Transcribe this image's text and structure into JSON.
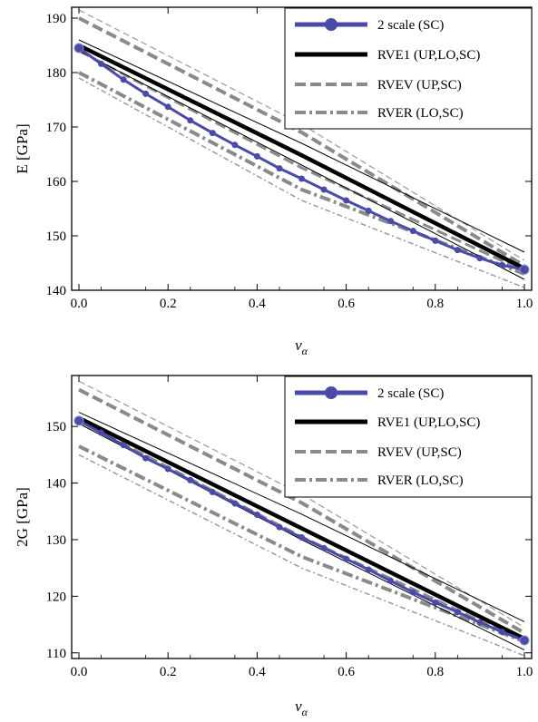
{
  "chart_data": [
    {
      "type": "line",
      "ylabel": "E [GPa]",
      "xlabel": "ν_α",
      "xlabel_main": "ν",
      "xlabel_sub": "α",
      "xlim": [
        0,
        1
      ],
      "ylim": [
        140,
        192
      ],
      "xticks": [
        0.0,
        0.2,
        0.4,
        0.6,
        0.8,
        1.0
      ],
      "xtick_labels": [
        "0.0",
        "0.2",
        "0.4",
        "0.6",
        "0.8",
        "1.0"
      ],
      "yticks": [
        140,
        150,
        160,
        170,
        180,
        190
      ],
      "ytick_labels": [
        "140",
        "150",
        "160",
        "170",
        "180",
        "190"
      ],
      "legend_position": "top-right",
      "legend": [
        "2 scale (SC)",
        "RVE1 (UP,LO,SC)",
        "RVEV (UP,SC)",
        "RVER (LO,SC)"
      ],
      "series": [
        {
          "name": "2 scale (SC)",
          "style": "markers",
          "color": "#4a4aa8",
          "x": [
            0,
            0.05,
            0.1,
            0.15,
            0.2,
            0.25,
            0.3,
            0.35,
            0.4,
            0.45,
            0.5,
            0.55,
            0.6,
            0.65,
            0.7,
            0.75,
            0.8,
            0.85,
            0.9,
            0.95,
            1.0
          ],
          "y": [
            184.5,
            181.6,
            178.7,
            176.1,
            173.7,
            171.2,
            168.9,
            166.7,
            164.6,
            162.4,
            160.5,
            158.5,
            156.5,
            154.6,
            152.7,
            150.9,
            149.1,
            147.4,
            145.9,
            144.6,
            143.8
          ]
        },
        {
          "name": "RVE1 (UP,LO,SC)",
          "style": "band",
          "color": "#000000",
          "x": [
            0,
            0.5,
            1.0
          ],
          "y": [
            185.0,
            164.8,
            144.0
          ],
          "upper": {
            "x": [
              0,
              0.5,
              1.0
            ],
            "y": [
              186.0,
              167.0,
              147.0
            ]
          },
          "lower": {
            "x": [
              0,
              0.5,
              1.0
            ],
            "y": [
              184.0,
              163.0,
              142.0
            ]
          }
        },
        {
          "name": "RVEV (UP,SC)",
          "style": "dashed-band",
          "color": "#8a8a8a",
          "upper": {
            "x": [
              0,
              0.5,
              1.0
            ],
            "y": [
              190.0,
              169.0,
              144.5
            ]
          },
          "upper_outer": {
            "x": [
              0,
              0.5,
              1.0
            ],
            "y": [
              191.5,
              170.5,
              145.5
            ]
          },
          "lower": {
            "x": [
              0,
              0.5,
              1.0
            ],
            "y": [
              184.0,
              162.5,
              143.5
            ]
          }
        },
        {
          "name": "RVER (LO,SC)",
          "style": "dashdot-band",
          "color": "#8a8a8a",
          "upper": {
            "x": [
              0,
              0.5,
              1.0
            ],
            "y": [
              180.0,
              158.5,
              143.0
            ]
          },
          "lower": {
            "x": [
              0,
              0.5,
              1.0
            ],
            "y": [
              179.0,
              156.5,
              140.5
            ]
          }
        }
      ]
    },
    {
      "type": "line",
      "ylabel": "2G [GPa]",
      "xlabel": "ν_α",
      "xlabel_main": "ν",
      "xlabel_sub": "α",
      "xlim": [
        0,
        1
      ],
      "ylim": [
        109,
        159
      ],
      "xticks": [
        0.0,
        0.2,
        0.4,
        0.6,
        0.8,
        1.0
      ],
      "xtick_labels": [
        "0.0",
        "0.2",
        "0.4",
        "0.6",
        "0.8",
        "1.0"
      ],
      "yticks": [
        110,
        120,
        130,
        140,
        150
      ],
      "ytick_labels": [
        "110",
        "120",
        "130",
        "140",
        "150"
      ],
      "legend_position": "top-right",
      "legend": [
        "2 scale (SC)",
        "RVE1 (UP,LO,SC)",
        "RVEV (UP,SC)",
        "RVER (LO,SC)"
      ],
      "series": [
        {
          "name": "2 scale (SC)",
          "style": "markers",
          "color": "#4a4aa8",
          "x": [
            0,
            0.05,
            0.1,
            0.15,
            0.2,
            0.25,
            0.3,
            0.35,
            0.4,
            0.45,
            0.5,
            0.55,
            0.6,
            0.65,
            0.7,
            0.75,
            0.8,
            0.85,
            0.9,
            0.95,
            1.0
          ],
          "y": [
            151.0,
            148.9,
            146.7,
            144.4,
            142.5,
            140.5,
            138.4,
            136.4,
            134.4,
            132.2,
            130.4,
            128.5,
            126.6,
            124.7,
            122.7,
            120.7,
            118.9,
            117.2,
            115.4,
            113.7,
            112.2
          ]
        },
        {
          "name": "RVE1 (UP,LO,SC)",
          "style": "band",
          "color": "#000000",
          "x": [
            0,
            0.5,
            1.0
          ],
          "y": [
            151.5,
            132.0,
            112.5
          ],
          "upper": {
            "x": [
              0,
              0.5,
              1.0
            ],
            "y": [
              152.5,
              134.5,
              115.5
            ]
          },
          "lower": {
            "x": [
              0,
              0.5,
              1.0
            ],
            "y": [
              150.5,
              130.0,
              110.5
            ]
          }
        },
        {
          "name": "RVEV (UP,SC)",
          "style": "dashed-band",
          "color": "#8a8a8a",
          "upper": {
            "x": [
              0,
              0.5,
              1.0
            ],
            "y": [
              156.5,
              136.5,
              113.5
            ]
          },
          "upper_outer": {
            "x": [
              0,
              0.5,
              1.0
            ],
            "y": [
              158.0,
              138.0,
              114.5
            ]
          },
          "lower": {
            "x": [
              0,
              0.5,
              1.0
            ],
            "y": [
              151.0,
              130.5,
              112.0
            ]
          }
        },
        {
          "name": "RVER (LO,SC)",
          "style": "dashdot-band",
          "color": "#8a8a8a",
          "upper": {
            "x": [
              0,
              0.5,
              1.0
            ],
            "y": [
              146.5,
              127.0,
              112.0
            ]
          },
          "lower": {
            "x": [
              0,
              0.5,
              1.0
            ],
            "y": [
              145.0,
              125.0,
              109.5
            ]
          }
        }
      ]
    }
  ]
}
